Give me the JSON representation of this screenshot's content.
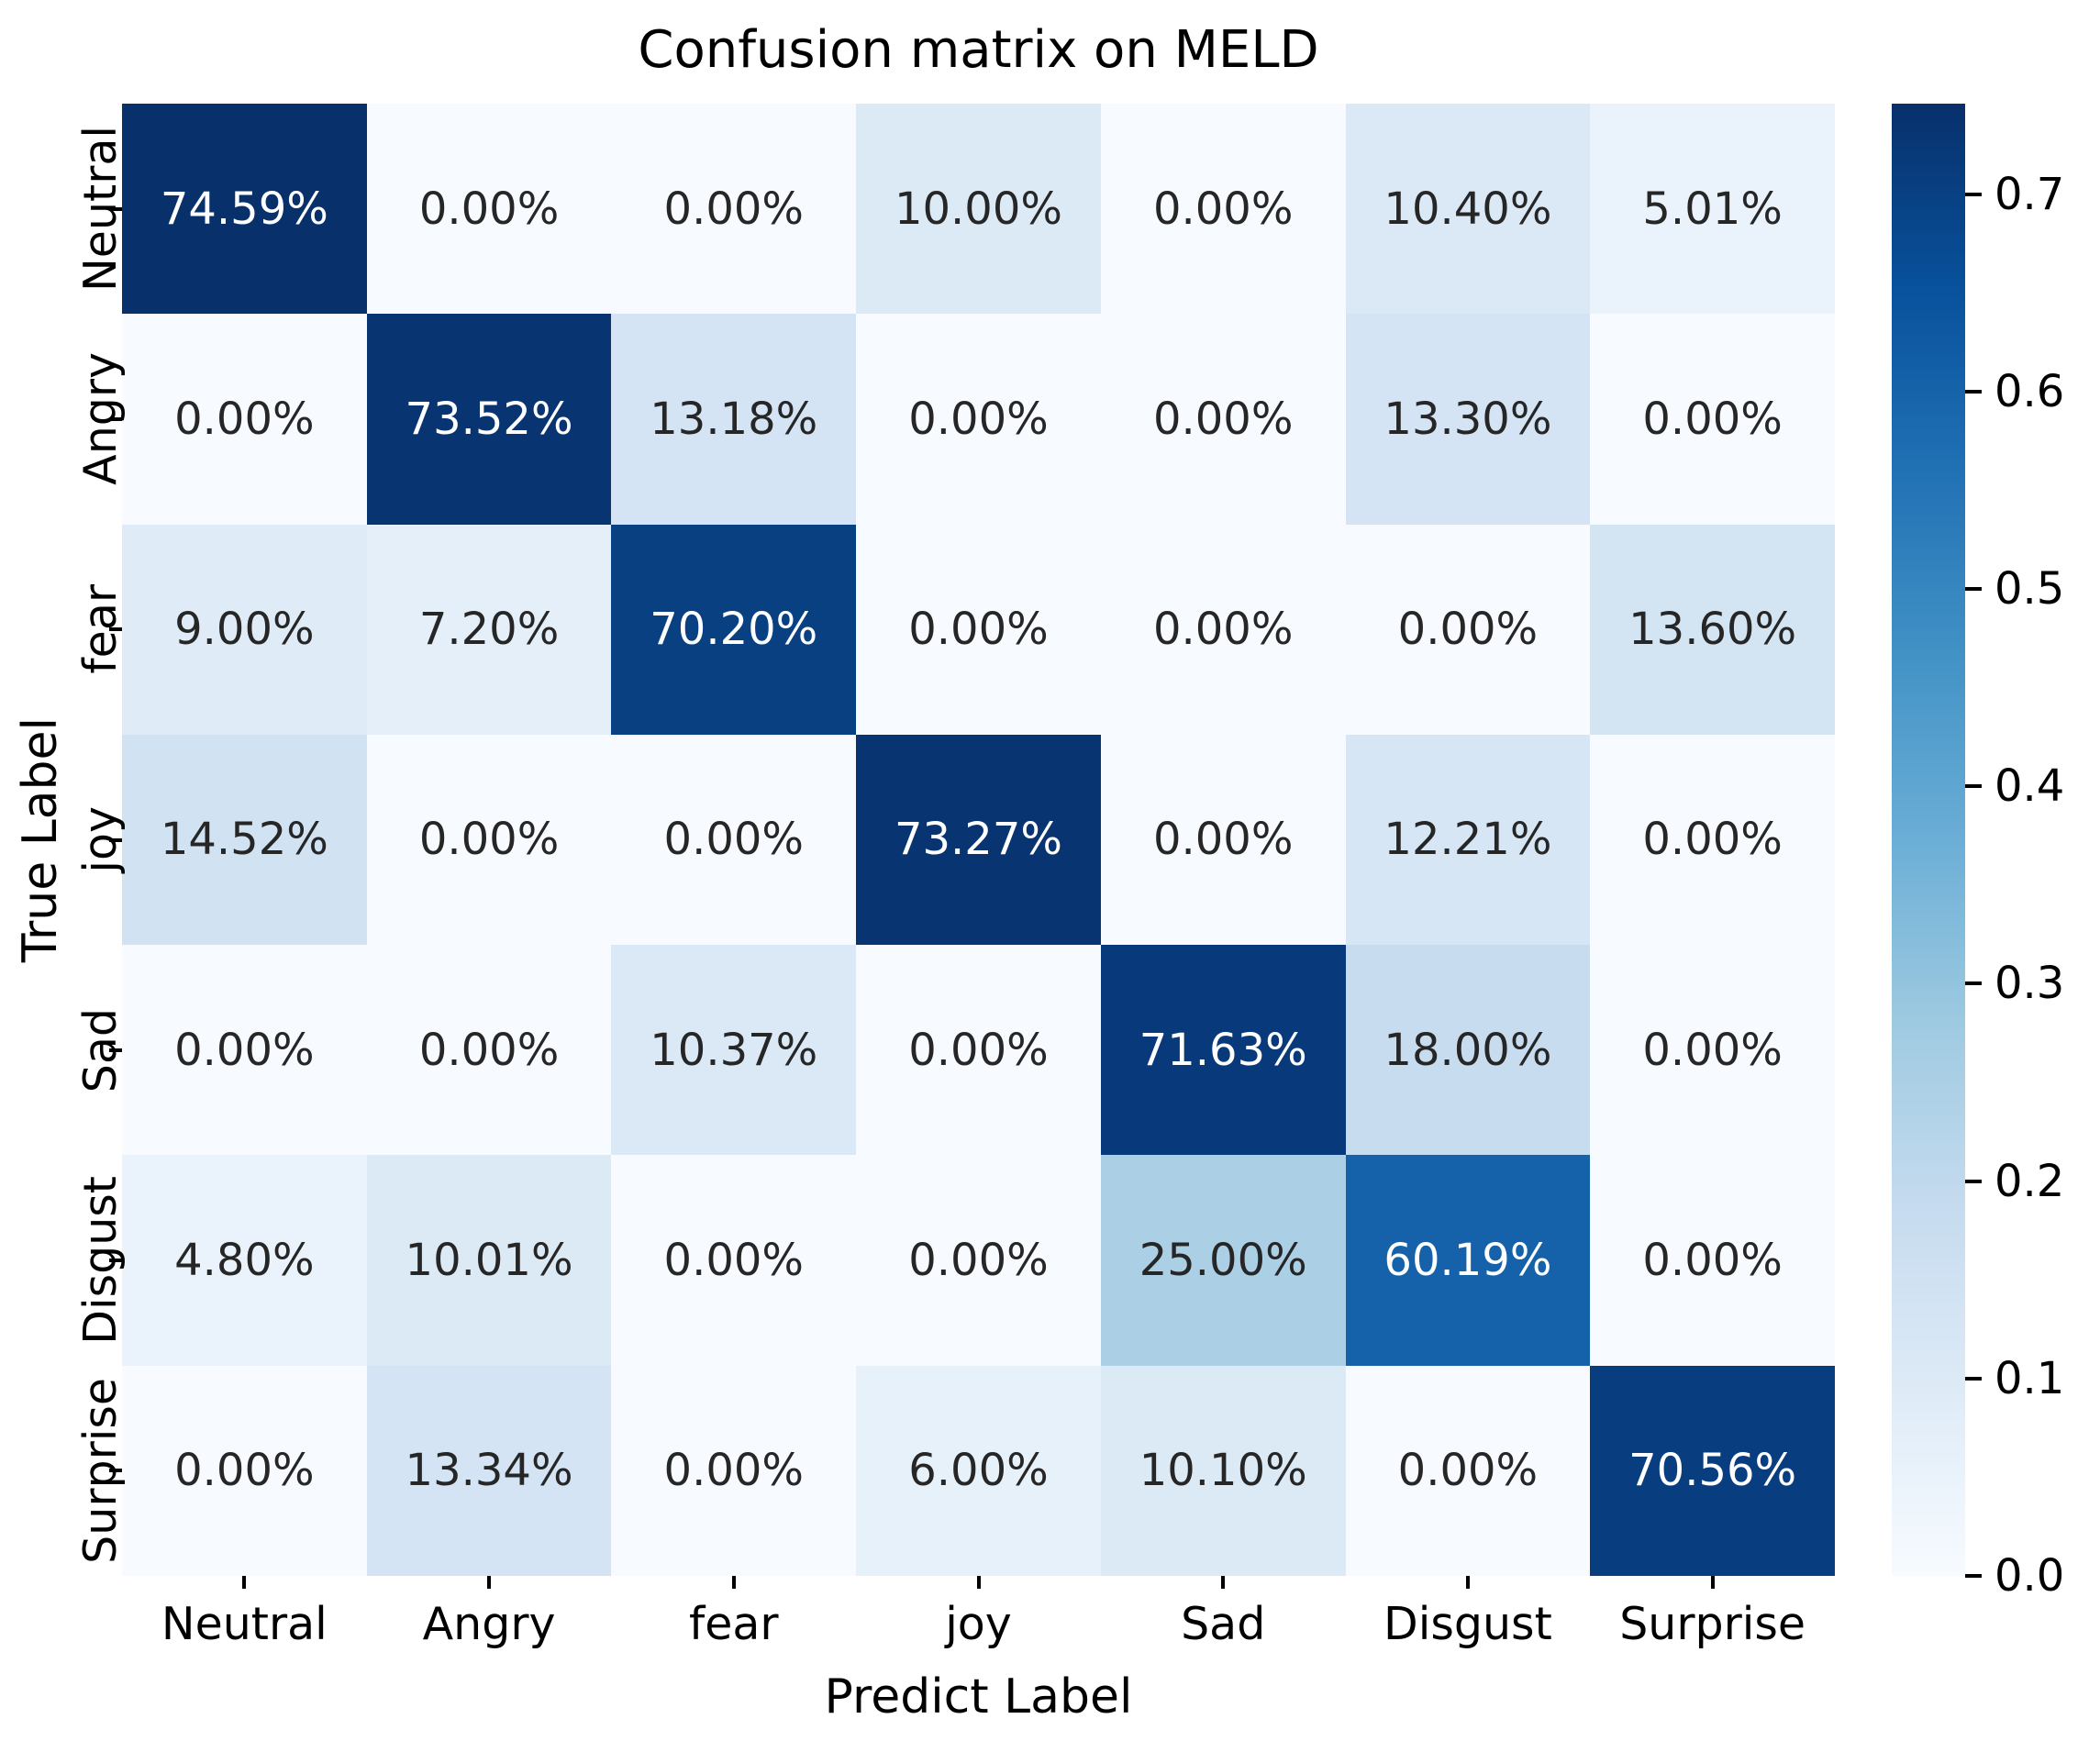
{
  "title": "Confusion matrix on MELD",
  "axes": {
    "xlabel": "Predict Label",
    "ylabel": "True Label"
  },
  "chart_data": {
    "type": "heatmap",
    "title": "Confusion matrix on MELD",
    "xlabel": "Predict Label",
    "ylabel": "True Label",
    "x_categories": [
      "Neutral",
      "Angry",
      "fear",
      "joy",
      "Sad",
      "Disgust",
      "Surprise"
    ],
    "y_categories": [
      "Neutral",
      "Angry",
      "fear",
      "joy",
      "Sad",
      "Disgust",
      "Surprise"
    ],
    "cell_labels": [
      [
        "74.59%",
        "0.00%",
        "0.00%",
        "10.00%",
        "0.00%",
        "10.40%",
        "5.01%"
      ],
      [
        "0.00%",
        "73.52%",
        "13.18%",
        "0.00%",
        "0.00%",
        "13.30%",
        "0.00%"
      ],
      [
        "9.00%",
        "7.20%",
        "70.20%",
        "0.00%",
        "0.00%",
        "0.00%",
        "13.60%"
      ],
      [
        "14.52%",
        "0.00%",
        "0.00%",
        "73.27%",
        "0.00%",
        "12.21%",
        "0.00%"
      ],
      [
        "0.00%",
        "0.00%",
        "10.37%",
        "0.00%",
        "71.63%",
        "18.00%",
        "0.00%"
      ],
      [
        "4.80%",
        "10.01%",
        "0.00%",
        "0.00%",
        "25.00%",
        "60.19%",
        "0.00%"
      ],
      [
        "0.00%",
        "13.34%",
        "0.00%",
        "6.00%",
        "10.10%",
        "0.00%",
        "70.56%"
      ]
    ],
    "colormap": "Blues",
    "vmin": 0.0,
    "vmax": 0.7459,
    "colorbar_ticks": [
      "0.7",
      "0.6",
      "0.5",
      "0.4",
      "0.3",
      "0.2",
      "0.1",
      "0.0"
    ],
    "colorbar_position": "right",
    "grid": false
  },
  "colors": {
    "background": "#ffffff",
    "cmap_low": "#f7fbff",
    "cmap_high": "#08306b",
    "annotation_dark": "#262626",
    "annotation_light": "#ffffff",
    "axis_text": "#000000"
  }
}
